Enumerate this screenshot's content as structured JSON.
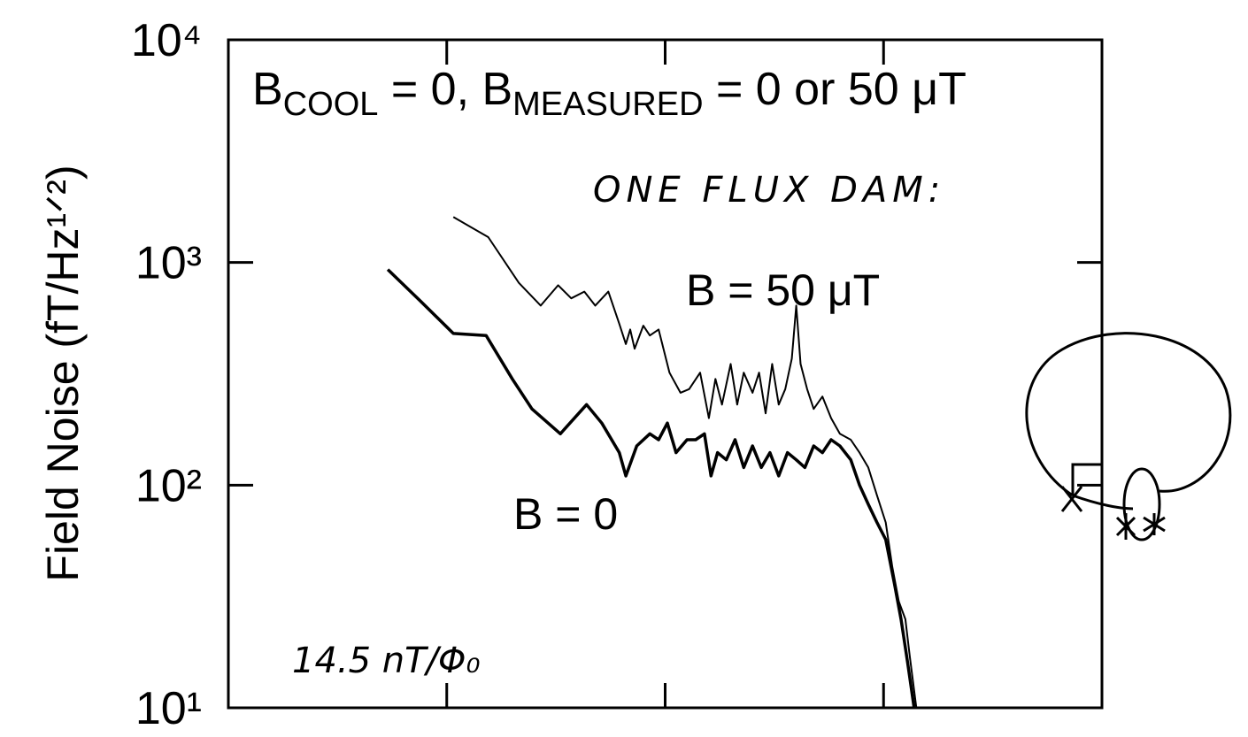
{
  "chart_data": {
    "type": "line",
    "title_parts": [
      "B",
      "COOL",
      " = 0, B",
      "MEASURED",
      " = 0 or 50 μT"
    ],
    "y_label": "Field Noise (fT/Hz¹ᐟ²)",
    "annotations": [
      "ONE FLUX DAM:",
      "14.5 nT/Φ₀"
    ],
    "ylog": true,
    "ylim": [
      10,
      10000
    ],
    "yticks": [
      {
        "value": 10,
        "label": "10¹"
      },
      {
        "value": 100,
        "label": "10²"
      },
      {
        "value": 1000,
        "label": "10³"
      },
      {
        "value": 10000,
        "label": "10⁴"
      }
    ],
    "xlim": [
      0,
      4
    ],
    "xticks": [
      1,
      2,
      3
    ],
    "series": [
      {
        "name": "B = 50 μT",
        "color": "#000000",
        "x": [
          1.03,
          1.19,
          1.33,
          1.43,
          1.51,
          1.57,
          1.63,
          1.68,
          1.74,
          1.79,
          1.82,
          1.84,
          1.86,
          1.9,
          1.93,
          1.97,
          2.02,
          2.07,
          2.11,
          2.16,
          2.2,
          2.23,
          2.26,
          2.3,
          2.33,
          2.36,
          2.4,
          2.43,
          2.46,
          2.49,
          2.52,
          2.55,
          2.58,
          2.6,
          2.62,
          2.65,
          2.68,
          2.72,
          2.76,
          2.8,
          2.85,
          2.89,
          2.93,
          2.97,
          3.01,
          3.04,
          3.07,
          3.1,
          3.12,
          3.15
        ],
        "values": [
          1600,
          1300,
          810,
          640,
          790,
          690,
          740,
          640,
          740,
          530,
          430,
          500,
          410,
          520,
          470,
          500,
          320,
          260,
          270,
          320,
          200,
          300,
          230,
          350,
          230,
          320,
          260,
          320,
          210,
          350,
          230,
          270,
          370,
          640,
          350,
          270,
          220,
          250,
          200,
          170,
          160,
          140,
          120,
          90,
          68,
          43,
          30,
          25,
          17,
          10
        ]
      },
      {
        "name": "B = 0",
        "color": "#000000",
        "x": [
          0.73,
          0.88,
          1.03,
          1.18,
          1.3,
          1.39,
          1.52,
          1.64,
          1.71,
          1.79,
          1.82,
          1.87,
          1.93,
          1.97,
          2.01,
          2.05,
          2.1,
          2.14,
          2.18,
          2.21,
          2.24,
          2.28,
          2.32,
          2.36,
          2.4,
          2.44,
          2.48,
          2.52,
          2.56,
          2.6,
          2.64,
          2.68,
          2.72,
          2.76,
          2.8,
          2.85,
          2.89,
          2.93,
          2.97,
          3.01,
          3.05,
          3.08,
          3.11,
          3.14
        ],
        "values": [
          930,
          670,
          480,
          470,
          300,
          220,
          170,
          230,
          190,
          140,
          110,
          150,
          170,
          160,
          190,
          140,
          160,
          160,
          170,
          110,
          140,
          130,
          160,
          120,
          150,
          120,
          140,
          110,
          140,
          130,
          120,
          150,
          140,
          160,
          150,
          130,
          100,
          82,
          68,
          57,
          36,
          25,
          16,
          10
        ]
      }
    ]
  }
}
